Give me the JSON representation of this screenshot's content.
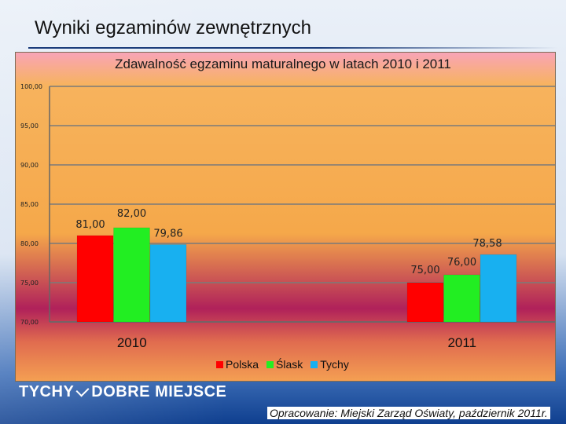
{
  "page": {
    "title": "Wyniki egzaminów zewnętrznych",
    "brand_left": "TYCHY",
    "brand_right": "DOBRE MIEJSCE",
    "footer": "Opracowanie: Miejski Zarząd Oświaty, październik 2011r."
  },
  "colors": {
    "polska": "#ff0000",
    "slask": "#22ee22",
    "tychy": "#18b0f0"
  },
  "chart_data": {
    "type": "bar",
    "title": "Zdawalność egzaminu maturalnego w latach 2010 i 2011",
    "categories": [
      "2010",
      "2011"
    ],
    "series": [
      {
        "name": "Polska",
        "values": [
          81.0,
          75.0
        ],
        "labels": [
          "81,00",
          "75,00"
        ]
      },
      {
        "name": "Ślask",
        "values": [
          82.0,
          76.0
        ],
        "labels": [
          "82,00",
          "76,00"
        ]
      },
      {
        "name": "Tychy",
        "values": [
          79.86,
          78.58
        ],
        "labels": [
          "79,86",
          "78,58"
        ]
      }
    ],
    "ylim": [
      70,
      100
    ],
    "yticks": [
      70,
      75,
      80,
      85,
      90,
      95,
      100
    ],
    "ytick_labels": [
      "70,00",
      "75,00",
      "80,00",
      "85,00",
      "90,00",
      "95,00",
      "100,00"
    ],
    "grid": true,
    "legend": "bottom"
  }
}
